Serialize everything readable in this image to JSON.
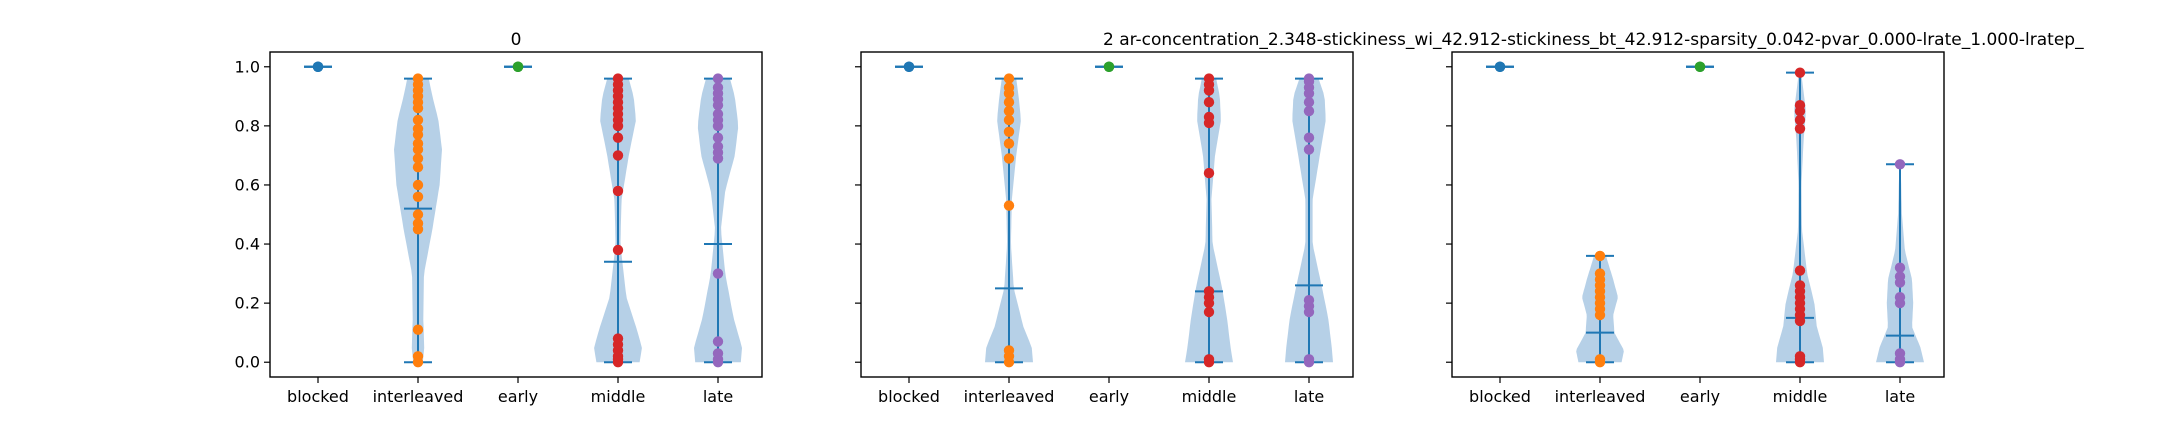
{
  "figure_title": "2    ar-concentration_2.348-stickiness_wi_42.912-stickiness_bt_42.912-sparsity_0.042-pvar_0.000-lrate_1.000-lratep_",
  "colors": {
    "violin": "#a9c8e3",
    "stat_line": "#1f77b4",
    "blocked": "#1f77b4",
    "interleaved": "#ff7f0e",
    "early": "#2ca02c",
    "middle": "#d62728",
    "late": "#9467bd"
  },
  "chart_data": [
    {
      "type": "violin",
      "title": "0",
      "categories": [
        "blocked",
        "interleaved",
        "early",
        "middle",
        "late"
      ],
      "ylim": [
        -0.05,
        1.05
      ],
      "yticks": [
        "0.0",
        "0.2",
        "0.4",
        "0.6",
        "0.8",
        "1.0"
      ],
      "series": [
        {
          "category": "blocked",
          "min": 1.0,
          "max": 1.0,
          "mean": 1.0,
          "points": [
            1.0,
            1.0,
            1.0,
            1.0
          ],
          "density": [
            [
              1.0,
              0.0
            ]
          ]
        },
        {
          "category": "interleaved",
          "min": 0.0,
          "max": 0.96,
          "mean": 0.52,
          "points": [
            0.0,
            0.02,
            0.11,
            0.45,
            0.47,
            0.5,
            0.56,
            0.6,
            0.66,
            0.69,
            0.72,
            0.74,
            0.77,
            0.79,
            0.82,
            0.86,
            0.88,
            0.9,
            0.92,
            0.94,
            0.96
          ],
          "density": [
            [
              0.0,
              0.2
            ],
            [
              0.05,
              0.26
            ],
            [
              0.15,
              0.22
            ],
            [
              0.3,
              0.25
            ],
            [
              0.45,
              0.6
            ],
            [
              0.6,
              0.9
            ],
            [
              0.72,
              1.0
            ],
            [
              0.82,
              0.85
            ],
            [
              0.9,
              0.6
            ],
            [
              0.96,
              0.45
            ]
          ]
        },
        {
          "category": "early",
          "min": 1.0,
          "max": 1.0,
          "mean": 1.0,
          "points": [
            1.0,
            1.0,
            1.0,
            1.0
          ],
          "density": [
            [
              1.0,
              0.0
            ]
          ]
        },
        {
          "category": "middle",
          "min": 0.0,
          "max": 0.96,
          "mean": 0.34,
          "points": [
            0.0,
            0.01,
            0.02,
            0.04,
            0.06,
            0.08,
            0.38,
            0.58,
            0.7,
            0.76,
            0.8,
            0.82,
            0.84,
            0.86,
            0.88,
            0.9,
            0.92,
            0.94,
            0.96
          ],
          "density": [
            [
              0.0,
              0.9
            ],
            [
              0.05,
              1.0
            ],
            [
              0.12,
              0.75
            ],
            [
              0.22,
              0.35
            ],
            [
              0.4,
              0.1
            ],
            [
              0.55,
              0.15
            ],
            [
              0.7,
              0.45
            ],
            [
              0.82,
              0.75
            ],
            [
              0.9,
              0.65
            ],
            [
              0.96,
              0.45
            ]
          ]
        },
        {
          "category": "late",
          "min": 0.0,
          "max": 0.96,
          "mean": 0.4,
          "points": [
            0.0,
            0.01,
            0.03,
            0.07,
            0.3,
            0.69,
            0.71,
            0.73,
            0.76,
            0.8,
            0.82,
            0.84,
            0.87,
            0.89,
            0.91,
            0.93,
            0.96
          ],
          "density": [
            [
              0.0,
              0.95
            ],
            [
              0.05,
              1.0
            ],
            [
              0.15,
              0.65
            ],
            [
              0.3,
              0.3
            ],
            [
              0.45,
              0.12
            ],
            [
              0.58,
              0.3
            ],
            [
              0.7,
              0.7
            ],
            [
              0.8,
              0.85
            ],
            [
              0.9,
              0.7
            ],
            [
              0.96,
              0.5
            ]
          ]
        }
      ]
    },
    {
      "type": "violin",
      "title": "",
      "categories": [
        "blocked",
        "interleaved",
        "early",
        "middle",
        "late"
      ],
      "ylim": [
        -0.05,
        1.05
      ],
      "yticks": [
        "0.0",
        "0.2",
        "0.4",
        "0.6",
        "0.8",
        "1.0"
      ],
      "series": [
        {
          "category": "blocked",
          "min": 1.0,
          "max": 1.0,
          "mean": 1.0,
          "points": [
            1.0,
            1.0,
            1.0
          ],
          "density": [
            [
              1.0,
              0.0
            ]
          ]
        },
        {
          "category": "interleaved",
          "min": 0.0,
          "max": 0.96,
          "mean": 0.25,
          "points": [
            0.0,
            0.02,
            0.04,
            0.53,
            0.69,
            0.74,
            0.78,
            0.82,
            0.85,
            0.88,
            0.91,
            0.93,
            0.96
          ],
          "density": [
            [
              0.0,
              1.0
            ],
            [
              0.05,
              0.95
            ],
            [
              0.12,
              0.6
            ],
            [
              0.25,
              0.2
            ],
            [
              0.4,
              0.08
            ],
            [
              0.55,
              0.12
            ],
            [
              0.7,
              0.3
            ],
            [
              0.82,
              0.5
            ],
            [
              0.9,
              0.4
            ],
            [
              0.96,
              0.3
            ]
          ]
        },
        {
          "category": "early",
          "min": 1.0,
          "max": 1.0,
          "mean": 1.0,
          "points": [
            1.0,
            1.0,
            1.0
          ],
          "density": [
            [
              1.0,
              0.0
            ]
          ]
        },
        {
          "category": "middle",
          "min": 0.0,
          "max": 0.96,
          "mean": 0.24,
          "points": [
            0.0,
            0.01,
            0.17,
            0.2,
            0.22,
            0.24,
            0.64,
            0.81,
            0.83,
            0.88,
            0.92,
            0.94,
            0.96
          ],
          "density": [
            [
              0.0,
              1.0
            ],
            [
              0.05,
              0.9
            ],
            [
              0.15,
              0.75
            ],
            [
              0.25,
              0.55
            ],
            [
              0.4,
              0.15
            ],
            [
              0.55,
              0.1
            ],
            [
              0.7,
              0.25
            ],
            [
              0.82,
              0.5
            ],
            [
              0.9,
              0.45
            ],
            [
              0.96,
              0.3
            ]
          ]
        },
        {
          "category": "late",
          "min": 0.0,
          "max": 0.96,
          "mean": 0.26,
          "points": [
            0.0,
            0.01,
            0.17,
            0.19,
            0.21,
            0.72,
            0.76,
            0.85,
            0.88,
            0.91,
            0.93,
            0.95,
            0.96
          ],
          "density": [
            [
              0.0,
              1.0
            ],
            [
              0.05,
              0.95
            ],
            [
              0.15,
              0.8
            ],
            [
              0.25,
              0.55
            ],
            [
              0.4,
              0.15
            ],
            [
              0.55,
              0.15
            ],
            [
              0.7,
              0.45
            ],
            [
              0.82,
              0.7
            ],
            [
              0.9,
              0.65
            ],
            [
              0.96,
              0.4
            ]
          ]
        }
      ]
    },
    {
      "type": "violin",
      "title": "",
      "categories": [
        "blocked",
        "interleaved",
        "early",
        "middle",
        "late"
      ],
      "ylim": [
        -0.05,
        1.05
      ],
      "yticks": [
        "0.0",
        "0.2",
        "0.4",
        "0.6",
        "0.8",
        "1.0"
      ],
      "series": [
        {
          "category": "blocked",
          "min": 1.0,
          "max": 1.0,
          "mean": 1.0,
          "points": [
            1.0,
            1.0,
            1.0
          ],
          "density": [
            [
              1.0,
              0.0
            ]
          ]
        },
        {
          "category": "interleaved",
          "min": 0.0,
          "max": 0.36,
          "mean": 0.1,
          "points": [
            0.0,
            0.01,
            0.16,
            0.18,
            0.2,
            0.22,
            0.24,
            0.26,
            0.28,
            0.3,
            0.36
          ],
          "density": [
            [
              0.0,
              0.9
            ],
            [
              0.04,
              1.0
            ],
            [
              0.1,
              0.6
            ],
            [
              0.16,
              0.55
            ],
            [
              0.22,
              0.75
            ],
            [
              0.28,
              0.55
            ],
            [
              0.36,
              0.25
            ]
          ]
        },
        {
          "category": "early",
          "min": 1.0,
          "max": 1.0,
          "mean": 1.0,
          "points": [
            1.0,
            1.0,
            1.0
          ],
          "density": [
            [
              1.0,
              0.0
            ]
          ]
        },
        {
          "category": "middle",
          "min": 0.0,
          "max": 0.98,
          "mean": 0.15,
          "points": [
            0.0,
            0.01,
            0.02,
            0.14,
            0.16,
            0.18,
            0.2,
            0.22,
            0.24,
            0.26,
            0.31,
            0.79,
            0.82,
            0.85,
            0.87,
            0.98
          ],
          "density": [
            [
              0.0,
              1.0
            ],
            [
              0.05,
              0.95
            ],
            [
              0.12,
              0.7
            ],
            [
              0.2,
              0.6
            ],
            [
              0.3,
              0.3
            ],
            [
              0.45,
              0.08
            ],
            [
              0.6,
              0.06
            ],
            [
              0.75,
              0.15
            ],
            [
              0.85,
              0.25
            ],
            [
              0.98,
              0.05
            ]
          ]
        },
        {
          "category": "late",
          "min": 0.0,
          "max": 0.67,
          "mean": 0.09,
          "points": [
            0.0,
            0.01,
            0.03,
            0.2,
            0.22,
            0.27,
            0.29,
            0.32,
            0.67
          ],
          "density": [
            [
              0.0,
              1.0
            ],
            [
              0.05,
              0.85
            ],
            [
              0.12,
              0.5
            ],
            [
              0.2,
              0.55
            ],
            [
              0.28,
              0.5
            ],
            [
              0.38,
              0.2
            ],
            [
              0.5,
              0.08
            ],
            [
              0.6,
              0.05
            ],
            [
              0.67,
              0.02
            ]
          ]
        }
      ]
    }
  ]
}
